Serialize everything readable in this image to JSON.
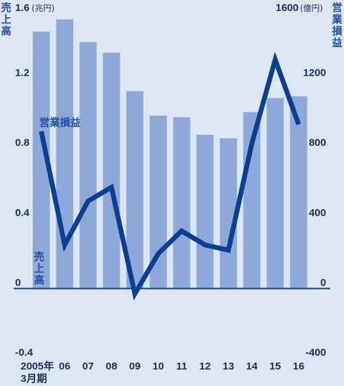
{
  "chart_data": {
    "type": "bar+line",
    "title": "",
    "categories": [
      "2005年",
      "06",
      "07",
      "08",
      "09",
      "10",
      "11",
      "12",
      "13",
      "14",
      "15",
      "16"
    ],
    "x_sublabel": "3月期",
    "series": [
      {
        "name": "売上高",
        "kind": "bar",
        "axis": "left",
        "color": "#8ea8d8",
        "values": [
          1.47,
          1.54,
          1.41,
          1.35,
          1.13,
          0.99,
          0.98,
          0.88,
          0.86,
          1.01,
          1.09,
          1.1
        ]
      },
      {
        "name": "営業損益",
        "kind": "line",
        "axis": "right",
        "color": "#0b3f94",
        "values": [
          900,
          250,
          500,
          580,
          -30,
          200,
          330,
          250,
          220,
          830,
          1310,
          940
        ]
      }
    ],
    "y_left": {
      "label": "売上高",
      "unit": "(兆円)",
      "range": [
        -0.4,
        1.6
      ],
      "ticks": [
        -0.4,
        0,
        0.4,
        0.8,
        1.2,
        1.6
      ],
      "tick_labels": [
        "-0.4",
        "0",
        "0.4",
        "0.8",
        "1.2",
        "1.6"
      ]
    },
    "y_right": {
      "label": "営業損益",
      "unit": "(億円)",
      "range": [
        -400,
        1600
      ],
      "ticks": [
        -400,
        0,
        400,
        800,
        1200,
        1600
      ],
      "tick_labels": [
        "-400",
        "0",
        "400",
        "800",
        "1200",
        "1600"
      ]
    },
    "grid": false,
    "colors": {
      "background": "#dde7f4",
      "bar": "#8ea8d8",
      "line": "#0b3f94",
      "zero_line": "#0b3f94",
      "text": "#1f2d5a",
      "label": "#1f4e9c"
    }
  }
}
